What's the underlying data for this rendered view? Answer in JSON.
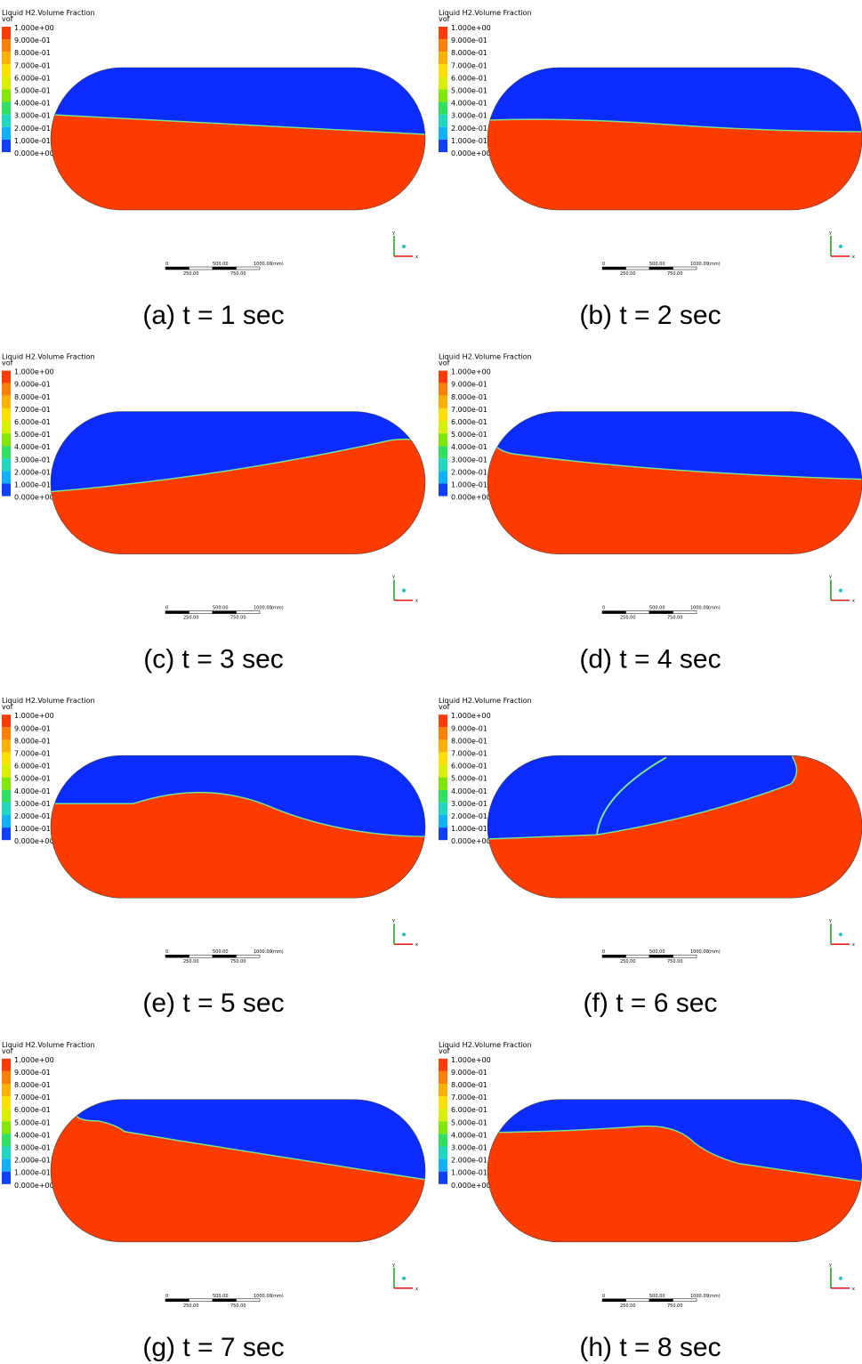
{
  "legend": {
    "title": "Liquid H2.Volume Fraction",
    "unit": "vof",
    "labels": [
      "1.000e+00",
      "9.000e-01",
      "8.000e-01",
      "7.000e-01",
      "6.000e-01",
      "5.000e-01",
      "4.000e-01",
      "3.000e-01",
      "2.000e-01",
      "1.000e-01",
      "0.000e+00"
    ]
  },
  "scale_bar": {
    "top": [
      "0",
      "500.00",
      "1000.00"
    ],
    "unit": "(mm)",
    "bottom": [
      "250.00",
      "750.00"
    ]
  },
  "axes": {
    "y": "y",
    "x": "x"
  },
  "panels": [
    {
      "caption": "(a) t = 1 sec"
    },
    {
      "caption": "(b) t = 2 sec"
    },
    {
      "caption": "(c) t = 3 sec"
    },
    {
      "caption": "(d) t = 4 sec"
    },
    {
      "caption": "(e) t = 5 sec"
    },
    {
      "caption": "(f) t = 6 sec"
    },
    {
      "caption": "(g) t = 7 sec"
    },
    {
      "caption": "(h) t = 8 sec"
    }
  ]
}
